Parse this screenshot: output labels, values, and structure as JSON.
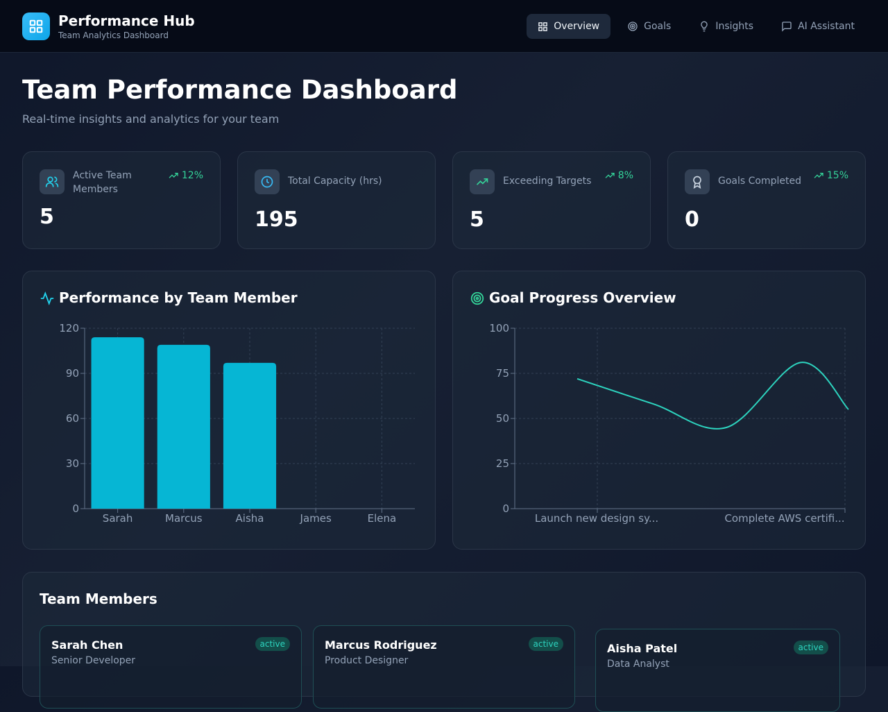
{
  "header": {
    "brand_title": "Performance Hub",
    "brand_subtitle": "Team Analytics Dashboard",
    "nav": [
      {
        "label": "Overview",
        "icon": "grid-icon",
        "active": true
      },
      {
        "label": "Goals",
        "icon": "target-icon",
        "active": false
      },
      {
        "label": "Insights",
        "icon": "lightbulb-icon",
        "active": false
      },
      {
        "label": "AI Assistant",
        "icon": "message-icon",
        "active": false
      }
    ]
  },
  "page": {
    "title": "Team Performance Dashboard",
    "subtitle": "Real-time insights and analytics for your team"
  },
  "stats": [
    {
      "label": "Active Team Members",
      "value": "5",
      "trend": "12%",
      "icon": "users-icon"
    },
    {
      "label": "Total Capacity (hrs)",
      "value": "195",
      "trend": "",
      "icon": "clock-icon"
    },
    {
      "label": "Exceeding Targets",
      "value": "5",
      "trend": "8%",
      "icon": "trending-up-icon"
    },
    {
      "label": "Goals Completed",
      "value": "0",
      "trend": "15%",
      "icon": "award-icon"
    }
  ],
  "performance_panel": {
    "title": "Performance by Team Member",
    "icon": "activity-icon"
  },
  "goal_panel": {
    "title": "Goal Progress Overview",
    "icon": "target-icon"
  },
  "colors": {
    "accent": "#06b6d4",
    "line": "#2dd4bf",
    "trend": "#34d399"
  },
  "chart_data": [
    {
      "type": "bar",
      "categories": [
        "Sarah",
        "Marcus",
        "Aisha",
        "James",
        "Elena"
      ],
      "values": [
        114,
        109,
        97,
        0,
        0
      ],
      "ylim": [
        0,
        120
      ],
      "yticks": [
        0,
        30,
        60,
        90,
        120
      ],
      "grid": true
    },
    {
      "type": "line",
      "categories": [
        "Launch new design sy...",
        "",
        "",
        "",
        "Complete AWS certifi..."
      ],
      "values": [
        72,
        58,
        45,
        81,
        55
      ],
      "ylim": [
        0,
        100
      ],
      "yticks": [
        0,
        25,
        50,
        75,
        100
      ],
      "grid": true
    }
  ],
  "members": {
    "title": "Team Members",
    "items": [
      {
        "name": "Sarah Chen",
        "role": "Senior Developer",
        "status": "active"
      },
      {
        "name": "Marcus Rodriguez",
        "role": "Product Designer",
        "status": "active"
      },
      {
        "name": "Aisha Patel",
        "role": "Data Analyst",
        "status": "active"
      }
    ]
  }
}
